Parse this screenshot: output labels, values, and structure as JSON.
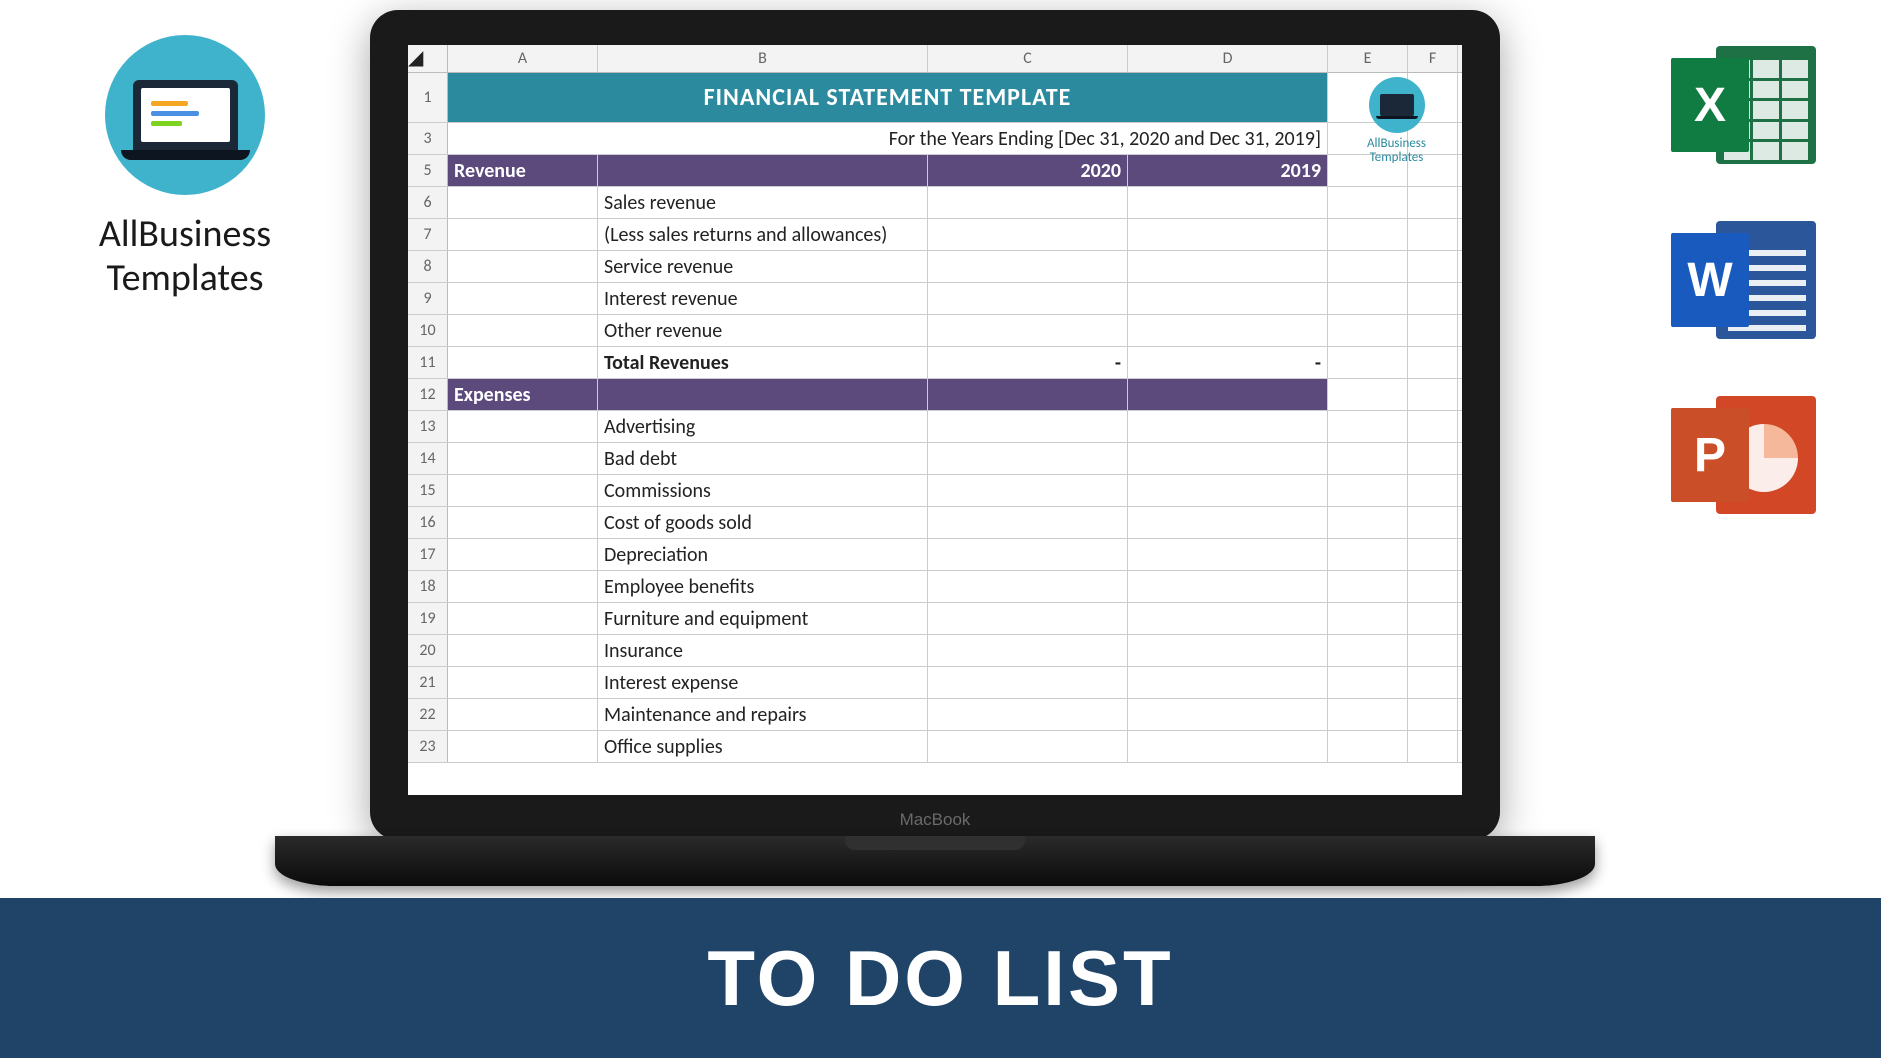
{
  "brand": {
    "name_line1": "AllBusiness",
    "name_line2": "Templates",
    "mini_label": "AllBusiness\nTemplates"
  },
  "laptop": {
    "label": "MacBook"
  },
  "spreadsheet": {
    "columns": [
      "A",
      "B",
      "C",
      "D",
      "E",
      "F"
    ],
    "title": "FINANCIAL STATEMENT TEMPLATE",
    "title_bg": "#2b8a9e",
    "section_bg": "#5d4a7d",
    "subtitle": "For the Years Ending [Dec 31, 2020 and Dec 31, 2019]",
    "revenue": {
      "header": "Revenue",
      "year1": "2020",
      "year2": "2019",
      "items": [
        "Sales revenue",
        "(Less sales returns and allowances)",
        "Service revenue",
        "Interest revenue",
        "Other revenue"
      ],
      "total_label": "Total Revenues",
      "total_v1": "-",
      "total_v2": "-"
    },
    "expenses": {
      "header": "Expenses",
      "items": [
        "Advertising",
        "Bad debt",
        "Commissions",
        "Cost of goods sold",
        "Depreciation",
        "Employee benefits",
        "Furniture and equipment",
        "Insurance",
        "Interest expense",
        "Maintenance and repairs",
        "Office supplies"
      ]
    },
    "row_numbers": {
      "title": "1",
      "subtitle": "3",
      "rev_header": "5",
      "rev_start": 6,
      "rev_total": "11",
      "exp_header": "12",
      "exp_start": 13
    }
  },
  "office": {
    "excel": "X",
    "word": "W",
    "ppt": "P",
    "colors": {
      "excel": "#107c41",
      "word": "#185abd",
      "ppt": "#ca4f28"
    }
  },
  "banner": {
    "text": "TO DO LIST",
    "bg": "#1f4468"
  }
}
